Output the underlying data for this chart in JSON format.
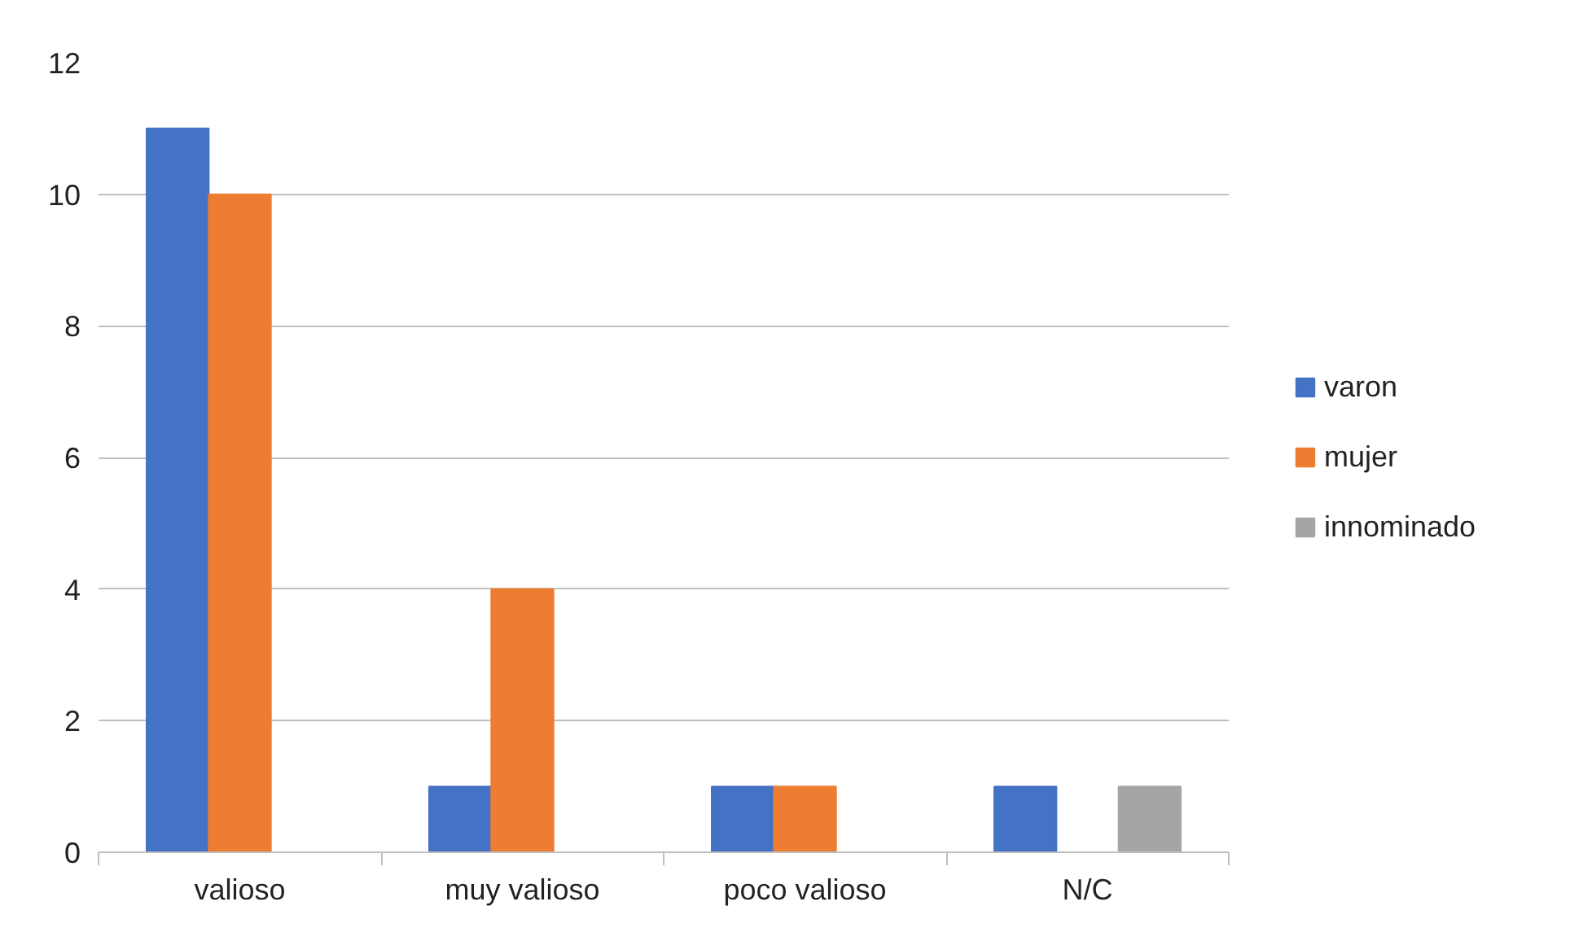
{
  "chart_data": {
    "type": "bar",
    "categories": [
      "valioso",
      "muy valioso",
      "poco valioso",
      "N/C"
    ],
    "series": [
      {
        "name": "varon",
        "color": "#4472c4",
        "values": [
          11,
          1,
          1,
          1
        ]
      },
      {
        "name": "mujer",
        "color": "#ed7d31",
        "values": [
          10,
          4,
          1,
          null
        ]
      },
      {
        "name": "innominado",
        "color": "#a5a5a5",
        "values": [
          null,
          null,
          null,
          1
        ]
      }
    ],
    "ylim": [
      0,
      12
    ],
    "yticks": [
      0,
      2,
      4,
      6,
      8,
      10,
      12
    ],
    "grid": "y",
    "legend": "right"
  }
}
